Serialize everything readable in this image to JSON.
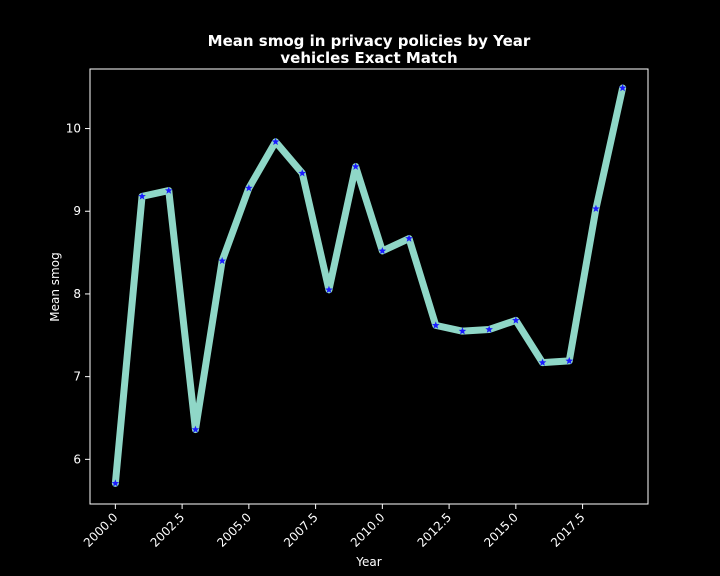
{
  "chart_data": {
    "type": "line",
    "title_line1": "Mean smog in privacy policies by Year",
    "title_line2": "vehicles Exact Match",
    "xlabel": "Year",
    "ylabel": "Mean smog",
    "xlim": [
      1999.05,
      2019.95
    ],
    "ylim": [
      5.46,
      10.72
    ],
    "x_ticks": [
      2000.0,
      2002.5,
      2005.0,
      2007.5,
      2010.0,
      2012.5,
      2015.0,
      2017.5
    ],
    "x_tick_labels": [
      "2000.0",
      "2002.5",
      "2005.0",
      "2007.5",
      "2010.0",
      "2012.5",
      "2015.0",
      "2017.5"
    ],
    "y_ticks": [
      6,
      7,
      8,
      9,
      10
    ],
    "y_tick_labels": [
      "6",
      "7",
      "8",
      "9",
      "10"
    ],
    "grid": false,
    "series": [
      {
        "x": [
          2000,
          2001,
          2002,
          2003,
          2004,
          2005,
          2006,
          2007,
          2008,
          2009,
          2010,
          2011,
          2012,
          2013,
          2014,
          2015,
          2016,
          2017,
          2018,
          2019
        ],
        "y": [
          5.71,
          9.18,
          9.25,
          6.36,
          8.4,
          9.28,
          9.84,
          9.46,
          8.05,
          9.54,
          8.52,
          8.67,
          7.62,
          7.55,
          7.57,
          7.68,
          7.17,
          7.19,
          9.03,
          10.49
        ],
        "line_color": "#8fd7c7",
        "marker_color": "#1a1aff",
        "marker": "star"
      }
    ]
  }
}
